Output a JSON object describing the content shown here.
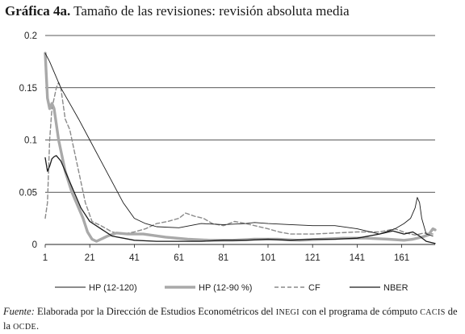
{
  "figure": {
    "number": "Gráfica 4a.",
    "title": "Tamaño de las revisiones: revisión absoluta media"
  },
  "source_note": {
    "label": "Fuente:",
    "text_a": "Elaborada por la Dirección de Estudios Econométricos del",
    "org1": "INEGI",
    "text_b": "con el programa de cómputo",
    "org2": "CACIS",
    "text_c": "de la",
    "org3": "OCDE",
    "text_d": "."
  },
  "chart_data": {
    "type": "line",
    "title": "Tamaño de las revisiones: revisión absoluta media",
    "xlabel": "",
    "ylabel": "",
    "xlim": [
      1,
      176
    ],
    "ylim": [
      0,
      0.2
    ],
    "x_ticks": [
      1,
      21,
      41,
      61,
      81,
      101,
      121,
      141,
      161
    ],
    "y_ticks": [
      {
        "value": 0,
        "label": "0"
      },
      {
        "value": 0.05,
        "label": "0.05"
      },
      {
        "value": 0.1,
        "label": "0.1"
      },
      {
        "value": 0.15,
        "label": "0.15"
      },
      {
        "value": 0.2,
        "label": "0.2"
      }
    ],
    "grid": "horizontal",
    "legend_position": "bottom",
    "series": [
      {
        "name": "HP (12-120)",
        "style": "thin-solid",
        "color": "#1a1a1a",
        "points": [
          [
            1,
            0.183
          ],
          [
            3,
            0.175
          ],
          [
            5,
            0.165
          ],
          [
            8,
            0.15
          ],
          [
            12,
            0.135
          ],
          [
            16,
            0.12
          ],
          [
            21,
            0.1
          ],
          [
            26,
            0.08
          ],
          [
            31,
            0.06
          ],
          [
            36,
            0.04
          ],
          [
            41,
            0.025
          ],
          [
            46,
            0.02
          ],
          [
            51,
            0.017
          ],
          [
            61,
            0.016
          ],
          [
            71,
            0.02
          ],
          [
            81,
            0.019
          ],
          [
            91,
            0.02
          ],
          [
            95,
            0.021
          ],
          [
            101,
            0.02
          ],
          [
            111,
            0.019
          ],
          [
            121,
            0.018
          ],
          [
            131,
            0.018
          ],
          [
            141,
            0.015
          ],
          [
            151,
            0.01
          ],
          [
            158,
            0.015
          ],
          [
            162,
            0.02
          ],
          [
            165,
            0.025
          ],
          [
            167,
            0.035
          ],
          [
            168,
            0.045
          ],
          [
            169,
            0.04
          ],
          [
            170,
            0.025
          ],
          [
            172,
            0.01
          ],
          [
            175,
            0.008
          ]
        ]
      },
      {
        "name": "HP (12-90 %)",
        "style": "thick-gray",
        "color": "#a9a9a9",
        "points": [
          [
            1,
            0.183
          ],
          [
            2,
            0.14
          ],
          [
            3,
            0.13
          ],
          [
            4,
            0.135
          ],
          [
            5,
            0.13
          ],
          [
            7,
            0.1
          ],
          [
            10,
            0.07
          ],
          [
            13,
            0.05
          ],
          [
            16,
            0.035
          ],
          [
            18,
            0.025
          ],
          [
            20,
            0.012
          ],
          [
            22,
            0.005
          ],
          [
            24,
            0.003
          ],
          [
            26,
            0.005
          ],
          [
            29,
            0.008
          ],
          [
            33,
            0.011
          ],
          [
            38,
            0.01
          ],
          [
            45,
            0.01
          ],
          [
            55,
            0.007
          ],
          [
            65,
            0.005
          ],
          [
            75,
            0.004
          ],
          [
            85,
            0.004
          ],
          [
            95,
            0.005
          ],
          [
            105,
            0.005
          ],
          [
            115,
            0.004
          ],
          [
            125,
            0.005
          ],
          [
            135,
            0.006
          ],
          [
            145,
            0.006
          ],
          [
            155,
            0.005
          ],
          [
            162,
            0.004
          ],
          [
            166,
            0.005
          ],
          [
            170,
            0.007
          ],
          [
            173,
            0.009
          ],
          [
            175,
            0.015
          ],
          [
            176,
            0.014
          ]
        ]
      },
      {
        "name": "CF",
        "style": "dashed",
        "color": "#8a8a8a",
        "points": [
          [
            1,
            0.025
          ],
          [
            2,
            0.04
          ],
          [
            3,
            0.1
          ],
          [
            4,
            0.13
          ],
          [
            6,
            0.15
          ],
          [
            7,
            0.155
          ],
          [
            8,
            0.15
          ],
          [
            10,
            0.12
          ],
          [
            12,
            0.11
          ],
          [
            14,
            0.09
          ],
          [
            17,
            0.06
          ],
          [
            19,
            0.04
          ],
          [
            22,
            0.022
          ],
          [
            26,
            0.018
          ],
          [
            31,
            0.012
          ],
          [
            36,
            0.01
          ],
          [
            41,
            0.012
          ],
          [
            46,
            0.015
          ],
          [
            51,
            0.02
          ],
          [
            56,
            0.022
          ],
          [
            61,
            0.025
          ],
          [
            64,
            0.03
          ],
          [
            68,
            0.027
          ],
          [
            72,
            0.025
          ],
          [
            76,
            0.02
          ],
          [
            81,
            0.018
          ],
          [
            86,
            0.022
          ],
          [
            91,
            0.02
          ],
          [
            101,
            0.015
          ],
          [
            106,
            0.012
          ],
          [
            111,
            0.01
          ],
          [
            121,
            0.01
          ],
          [
            131,
            0.011
          ],
          [
            141,
            0.012
          ],
          [
            151,
            0.012
          ],
          [
            158,
            0.015
          ],
          [
            163,
            0.011
          ],
          [
            167,
            0.009
          ],
          [
            171,
            0.011
          ],
          [
            175,
            0.01
          ]
        ]
      },
      {
        "name": "NBER",
        "style": "solid",
        "color": "#1a1a1a",
        "points": [
          [
            1,
            0.083
          ],
          [
            2,
            0.07
          ],
          [
            3,
            0.075
          ],
          [
            4,
            0.082
          ],
          [
            5,
            0.084
          ],
          [
            6,
            0.085
          ],
          [
            8,
            0.08
          ],
          [
            11,
            0.065
          ],
          [
            14,
            0.05
          ],
          [
            17,
            0.035
          ],
          [
            21,
            0.022
          ],
          [
            26,
            0.015
          ],
          [
            31,
            0.008
          ],
          [
            36,
            0.006
          ],
          [
            41,
            0.004
          ],
          [
            51,
            0.003
          ],
          [
            61,
            0.003
          ],
          [
            71,
            0.003
          ],
          [
            81,
            0.004
          ],
          [
            91,
            0.004
          ],
          [
            101,
            0.005
          ],
          [
            111,
            0.004
          ],
          [
            121,
            0.005
          ],
          [
            131,
            0.005
          ],
          [
            141,
            0.006
          ],
          [
            151,
            0.01
          ],
          [
            157,
            0.013
          ],
          [
            162,
            0.01
          ],
          [
            166,
            0.012
          ],
          [
            169,
            0.008
          ],
          [
            172,
            0.003
          ],
          [
            176,
            0.001
          ]
        ]
      }
    ]
  }
}
